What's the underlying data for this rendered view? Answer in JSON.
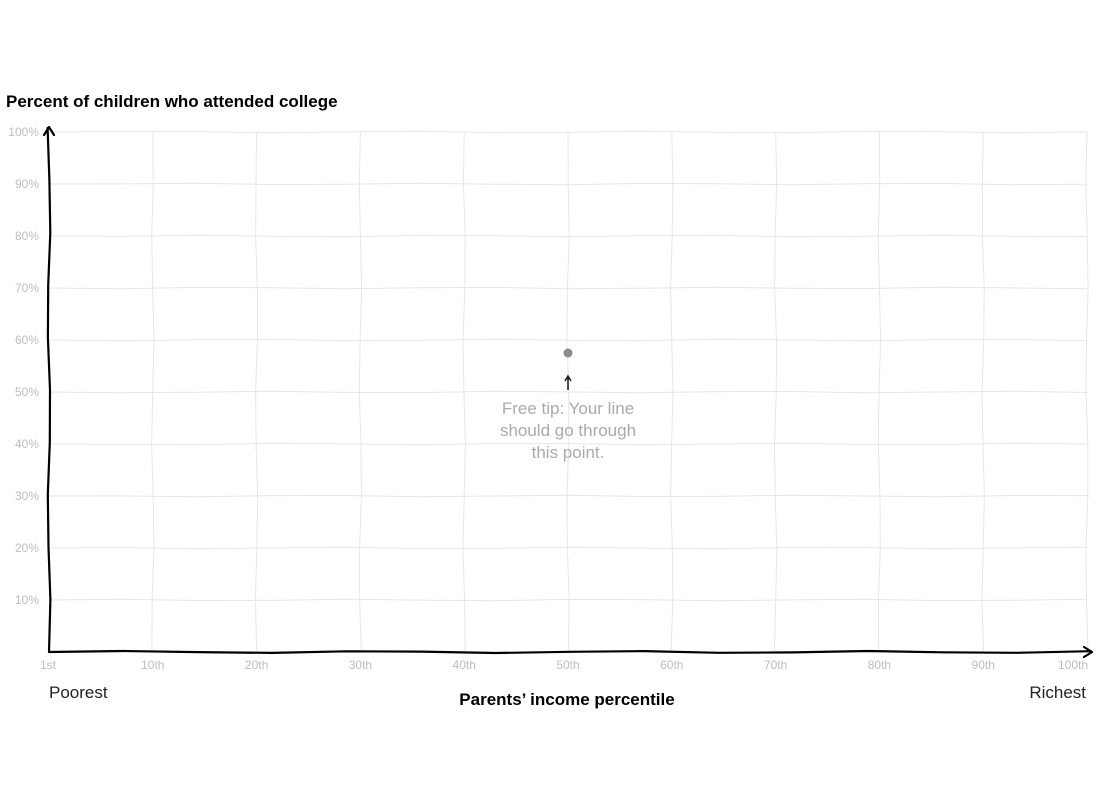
{
  "chart_data": {
    "type": "line",
    "title": "Percent of children who attended college",
    "xlabel": "Parents’ income percentile",
    "ylabel": "Percent of children who attended college",
    "x_ticks": [
      "1st",
      "10th",
      "20th",
      "30th",
      "40th",
      "50th",
      "60th",
      "70th",
      "80th",
      "90th",
      "100th"
    ],
    "y_ticks": [
      "10%",
      "20%",
      "30%",
      "40%",
      "50%",
      "60%",
      "70%",
      "80%",
      "90%",
      "100%"
    ],
    "xlim": [
      0,
      100
    ],
    "ylim": [
      0,
      100
    ],
    "grid": true,
    "x_end_labels": {
      "left": "Poorest",
      "right": "Richest"
    },
    "anchor_point": {
      "x": 50,
      "y": 57.5
    },
    "annotation": [
      "Free tip: Your line",
      "should go through",
      "this point."
    ],
    "colors": {
      "axis": "#000000",
      "grid": "#e6e6e6",
      "tick_text": "#bdbdbd",
      "anchor": "#8c8c8c",
      "annotation": "#aaaaaa"
    }
  }
}
